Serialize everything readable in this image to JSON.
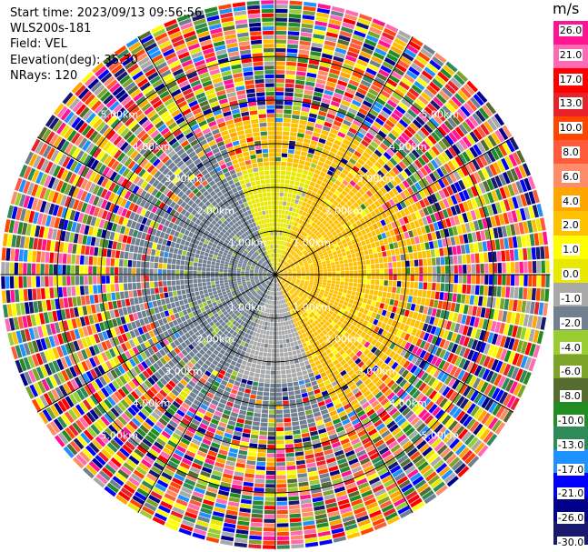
{
  "header": {
    "start_time": "Start time: 2023/09/13 09:56:56",
    "site": "WLS200s-181",
    "field": "Field: VEL",
    "elevation": "Elevation(deg): 35.30",
    "nrays": "NRays: 120"
  },
  "ring_labels": [
    "1.00km",
    "2.00km",
    "3.00km",
    "4.00km",
    "5.00km"
  ],
  "colorbar": {
    "unit": "m/s",
    "ticks": [
      "26.0",
      "21.0",
      "17.0",
      "13.0",
      "10.0",
      "8.0",
      "6.0",
      "4.0",
      "2.0",
      "1.0",
      "0.0",
      "-1.0",
      "-2.0",
      "-4.0",
      "-6.0",
      "-8.0",
      "-10.0",
      "-13.0",
      "-17.0",
      "-21.0",
      "-26.0",
      "-30.0"
    ],
    "colors": [
      "#ff1493",
      "#ff69b4",
      "#ff0000",
      "#e8212b",
      "#ff4500",
      "#ff5a3a",
      "#ff8c69",
      "#ffa500",
      "#ffc000",
      "#ffff00",
      "#e8e800",
      "#a9a9a9",
      "#708090",
      "#9acd32",
      "#7ba428",
      "#556b2f",
      "#228b22",
      "#2e8b57",
      "#1e90ff",
      "#0000ff",
      "#00008b",
      "#191970"
    ]
  },
  "chart_data": {
    "type": "ppi",
    "field": "VEL",
    "units": "m/s",
    "elevation_deg": 35.3,
    "n_rays": 120,
    "range_rings_km": [
      1,
      2,
      3,
      4,
      5
    ],
    "max_range_km": 6.3,
    "zones": [
      {
        "max_range_km": 2.5,
        "velocity_by_sector": {
          "east": 2.0,
          "west": -2.0,
          "north": 0.0,
          "south": -1.0
        }
      },
      {
        "max_range_km": 3.6,
        "velocity_by_sector": {
          "east": 2.0,
          "west": -2.0,
          "north": 2.0,
          "south": -2.0
        }
      },
      {
        "max_range_km": 6.3,
        "velocity": "noise"
      }
    ]
  }
}
